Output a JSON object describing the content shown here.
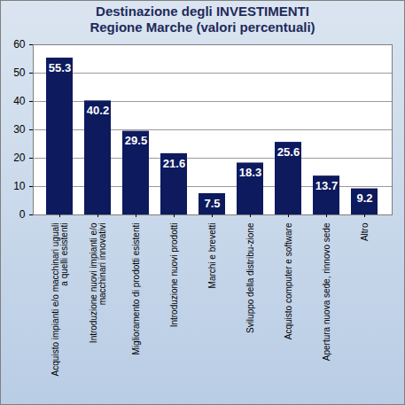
{
  "chart_data": {
    "type": "bar",
    "title": "Destinazione degli INVESTIMENTI",
    "subtitle": "Regione Marche (valori percentuali)",
    "categories": [
      "Acquisto impianti e/o macchinari uguali a quelli esistenti",
      "Introduzione nuovi impianti e/o macchinari innovativi",
      "Miglioramento di prodotti esistenti",
      "Introduzione nuovi prodotti",
      "Marchi e brevetti",
      "Sviluppo della distribu-zione",
      "Acquisto computer e software",
      "Apertura nuova sede, rinnovo sede",
      "Altro"
    ],
    "values": [
      55.3,
      40.2,
      29.5,
      21.6,
      7.5,
      18.3,
      25.6,
      13.7,
      9.2
    ],
    "color": "#0d1a5e",
    "ylim": [
      0,
      60
    ],
    "yticks": [
      0,
      10,
      20,
      30,
      40,
      50,
      60
    ],
    "grid": true,
    "data_labels": true
  }
}
